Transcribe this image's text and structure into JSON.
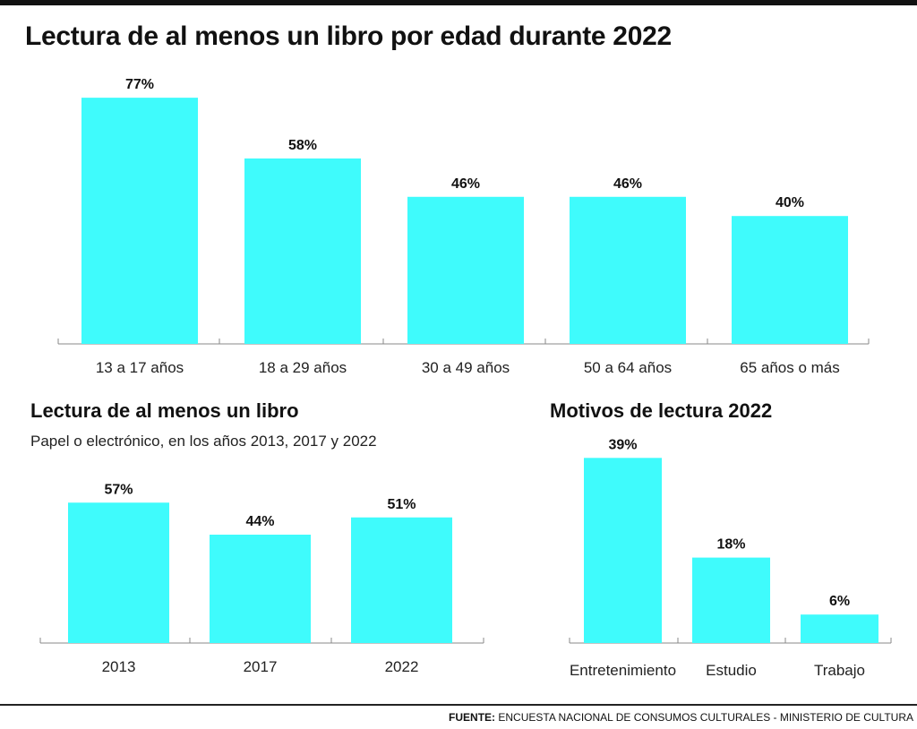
{
  "chart_data": [
    {
      "type": "bar",
      "title": "Lectura de al menos un libro por edad durante 2022",
      "categories": [
        "13 a 17 años",
        "18 a 29 años",
        "30 a 49 años",
        "50 a 64 años",
        "65 años o más"
      ],
      "values": [
        77,
        58,
        46,
        46,
        40
      ],
      "value_labels": [
        "77%",
        "58%",
        "46%",
        "46%",
        "40%"
      ],
      "unit": "%",
      "grid": false,
      "color": "#3ffbfc"
    },
    {
      "type": "bar",
      "title": "Lectura de al menos un libro",
      "subtitle": "Papel o electrónico, en los años 2013, 2017 y 2022",
      "categories": [
        "2013",
        "2017",
        "2022"
      ],
      "values": [
        57,
        44,
        51
      ],
      "value_labels": [
        "57%",
        "44%",
        "51%"
      ],
      "unit": "%",
      "grid": false,
      "color": "#3ffbfc"
    },
    {
      "type": "bar",
      "title": "Motivos de lectura 2022",
      "categories": [
        "Entretenimiento",
        "Estudio",
        "Trabajo"
      ],
      "values": [
        39,
        18,
        6
      ],
      "value_labels": [
        "39%",
        "18%",
        "6%"
      ],
      "unit": "%",
      "grid": false,
      "color": "#3ffbfc"
    }
  ],
  "footer": {
    "label": "FUENTE:",
    "text": " ENCUESTA NACIONAL DE CONSUMOS CULTURALES - MINISTERIO DE CULTURA"
  }
}
